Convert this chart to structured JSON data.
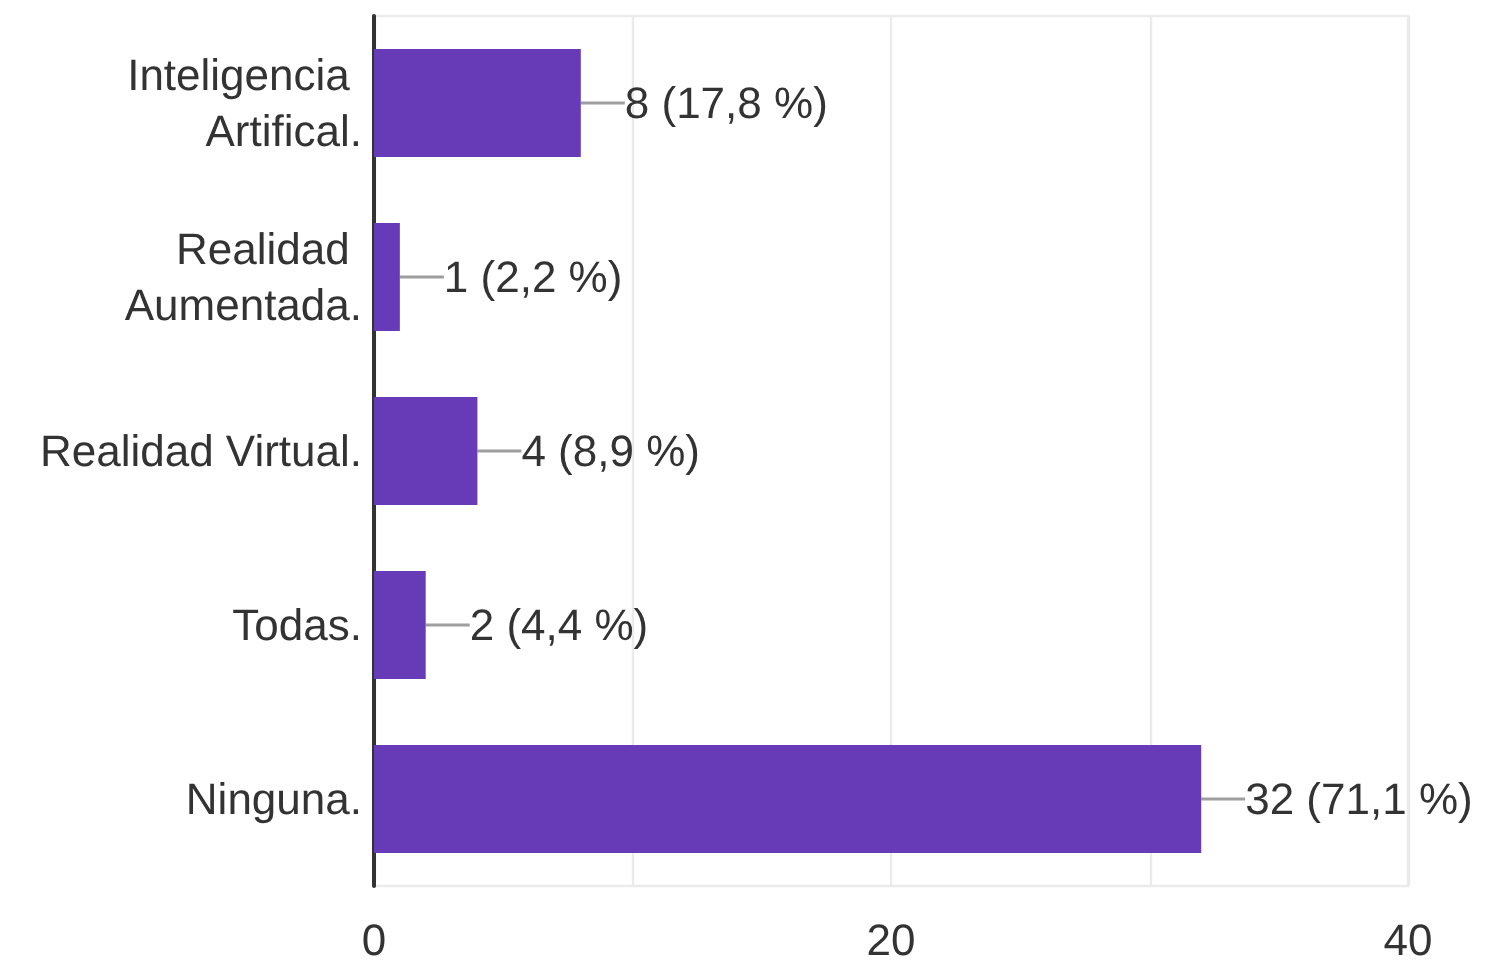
{
  "chart_data": {
    "type": "bar",
    "orientation": "horizontal",
    "categories": [
      "Inteligencia Artifical.",
      "Realidad Aumentada.",
      "Realidad Virtual.",
      "Todas.",
      "Ninguna."
    ],
    "values": [
      8,
      1,
      4,
      2,
      32
    ],
    "color": "#673ab7",
    "value_labels": [
      "8 (17,8 %)",
      "1 (2,2 %)",
      "4 (8,9 %)",
      "2 (4,4 %)",
      "32 (71,1 %)"
    ],
    "xlim": [
      0,
      40
    ],
    "xticks": [
      0,
      {
        "value": 10,
        "label": null
      },
      20,
      {
        "value": 30,
        "label": null
      },
      40
    ],
    "grid": "x"
  }
}
